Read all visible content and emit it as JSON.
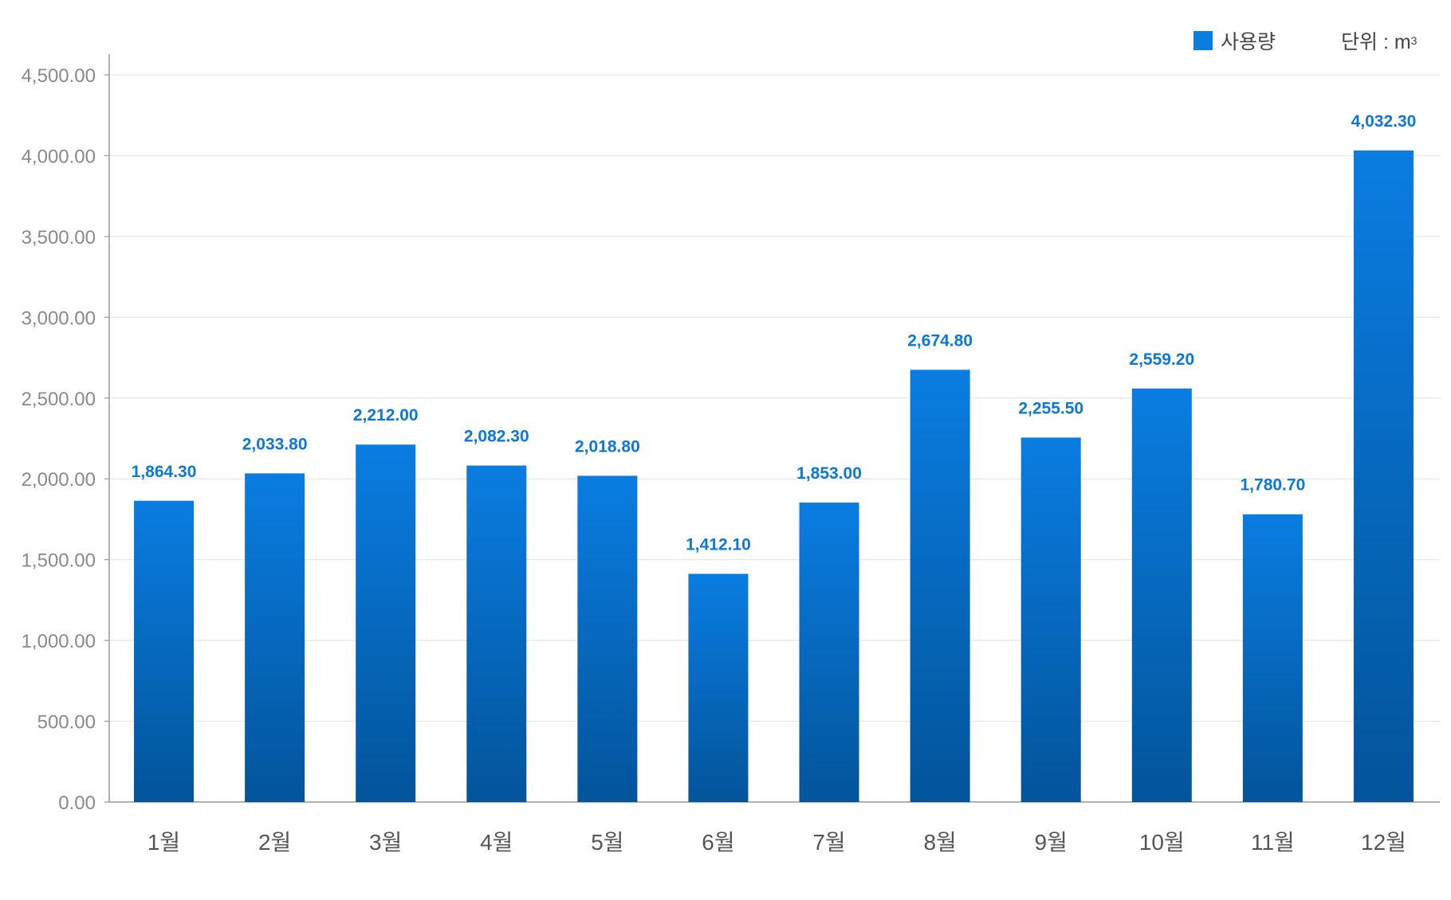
{
  "legend": {
    "label": "사용량",
    "color": "#0a7de2"
  },
  "unit": {
    "prefix": "단위 : m",
    "superscript": "3"
  },
  "chart_data": {
    "type": "bar",
    "categories": [
      "1월",
      "2월",
      "3월",
      "4월",
      "5월",
      "6월",
      "7월",
      "8월",
      "9월",
      "10월",
      "11월",
      "12월"
    ],
    "series": [
      {
        "name": "사용량",
        "values": [
          1864.3,
          2033.8,
          2212.0,
          2082.3,
          2018.8,
          1412.1,
          1853.0,
          2674.8,
          2255.5,
          2559.2,
          1780.7,
          4032.3
        ],
        "labels": [
          "1,864.30",
          "2,033.80",
          "2,212.00",
          "2,082.30",
          "2,018.80",
          "1,412.10",
          "1,853.00",
          "2,674.80",
          "2,255.50",
          "2,559.20",
          "1,780.70",
          "4,032.30"
        ]
      }
    ],
    "ylim": [
      0,
      4500
    ],
    "yticks": [
      "0.00",
      "500.00",
      "1,000.00",
      "1,500.00",
      "2,000.00",
      "2,500.00",
      "3,000.00",
      "3,500.00",
      "4,000.00",
      "4,500.00"
    ],
    "ytick_values": [
      0,
      500,
      1000,
      1500,
      2000,
      2500,
      3000,
      3500,
      4000,
      4500
    ],
    "grid": true,
    "legend_position": "top-right",
    "colors": {
      "bar_top": "#0a7de2",
      "bar_bottom": "#03549a",
      "value_label": "#0a78dc",
      "axis": "#999999",
      "grid": "#e6e6e6",
      "tick_text": "#8a8a8a",
      "category_text": "#555555"
    }
  }
}
